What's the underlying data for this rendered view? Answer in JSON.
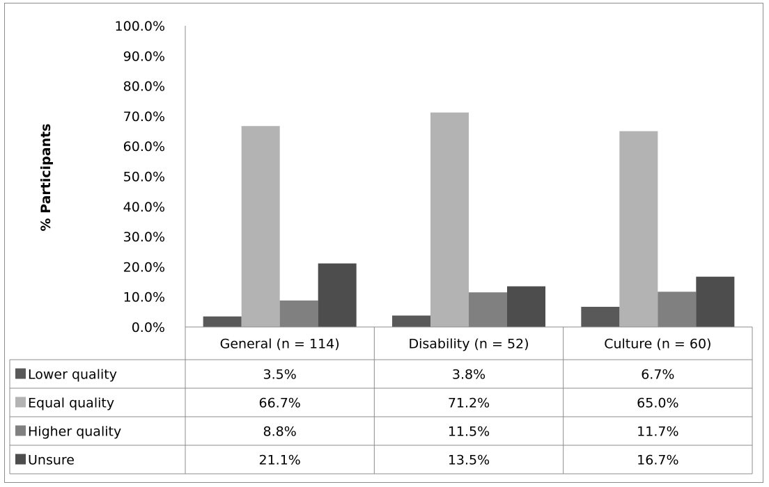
{
  "chart_data": {
    "type": "bar",
    "title": "",
    "xlabel": "",
    "ylabel": "% Participants",
    "ylim": [
      0,
      100
    ],
    "yticks": [
      "0.0%",
      "10.0%",
      "20.0%",
      "30.0%",
      "40.0%",
      "50.0%",
      "60.0%",
      "70.0%",
      "80.0%",
      "90.0%",
      "100.0%"
    ],
    "categories": [
      "General (n = 114)",
      "Disability (n = 52)",
      "Culture (n = 60)"
    ],
    "series": [
      {
        "name": "Lower quality",
        "color": "#595959",
        "values": [
          3.5,
          3.8,
          6.7
        ],
        "labels": [
          "3.5%",
          "3.8%",
          "6.7%"
        ]
      },
      {
        "name": "Equal quality",
        "color": "#b3b3b3",
        "values": [
          66.7,
          71.2,
          65.0
        ],
        "labels": [
          "66.7%",
          "71.2%",
          "65.0%"
        ]
      },
      {
        "name": "Higher quality",
        "color": "#808080",
        "values": [
          8.8,
          11.5,
          11.7
        ],
        "labels": [
          "8.8%",
          "11.5%",
          "11.7%"
        ]
      },
      {
        "name": "Unsure",
        "color": "#4d4d4d",
        "values": [
          21.1,
          13.5,
          16.7
        ],
        "labels": [
          "21.1%",
          "13.5%",
          "16.7%"
        ]
      }
    ],
    "grid": false,
    "legend": "data-table"
  }
}
